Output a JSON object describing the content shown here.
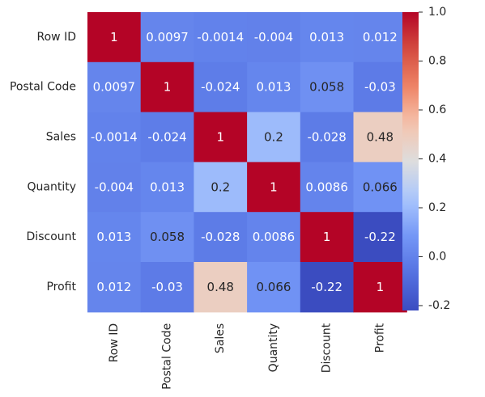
{
  "chart_data": {
    "type": "heatmap",
    "title": "",
    "xlabel": "",
    "ylabel": "",
    "rows": [
      "Row ID",
      "Postal Code",
      "Sales",
      "Quantity",
      "Discount",
      "Profit"
    ],
    "columns": [
      "Row ID",
      "Postal Code",
      "Sales",
      "Quantity",
      "Discount",
      "Profit"
    ],
    "values": [
      [
        1,
        0.0097,
        -0.0014,
        -0.004,
        0.013,
        0.012
      ],
      [
        0.0097,
        1,
        -0.024,
        0.013,
        0.058,
        -0.03
      ],
      [
        -0.0014,
        -0.024,
        1,
        0.2,
        -0.028,
        0.48
      ],
      [
        -0.004,
        0.013,
        0.2,
        1,
        0.0086,
        0.066
      ],
      [
        0.013,
        0.058,
        -0.028,
        0.0086,
        1,
        -0.22
      ],
      [
        0.012,
        -0.03,
        0.48,
        0.066,
        -0.22,
        1
      ]
    ],
    "value_labels": [
      [
        "1",
        "0.0097",
        "-0.0014",
        "-0.004",
        "0.013",
        "0.012"
      ],
      [
        "0.0097",
        "1",
        "-0.024",
        "0.013",
        "0.058",
        "-0.03"
      ],
      [
        "-0.0014",
        "-0.024",
        "1",
        "0.2",
        "-0.028",
        "0.48"
      ],
      [
        "-0.004",
        "0.013",
        "0.2",
        "1",
        "0.0086",
        "0.066"
      ],
      [
        "0.013",
        "0.058",
        "-0.028",
        "0.0086",
        "1",
        "-0.22"
      ],
      [
        "0.012",
        "-0.03",
        "0.48",
        "0.066",
        "-0.22",
        "1"
      ]
    ],
    "colormap": "coolwarm",
    "vmin": -0.22,
    "vmax": 1.0,
    "colorbar": {
      "ticks": [
        -0.2,
        0.0,
        0.2,
        0.4,
        0.6,
        0.8,
        1.0
      ],
      "tick_labels": [
        "-0.2",
        "0.0",
        "0.2",
        "0.4",
        "0.6",
        "0.8",
        "1.0"
      ],
      "placement": "right"
    },
    "grid": false
  }
}
